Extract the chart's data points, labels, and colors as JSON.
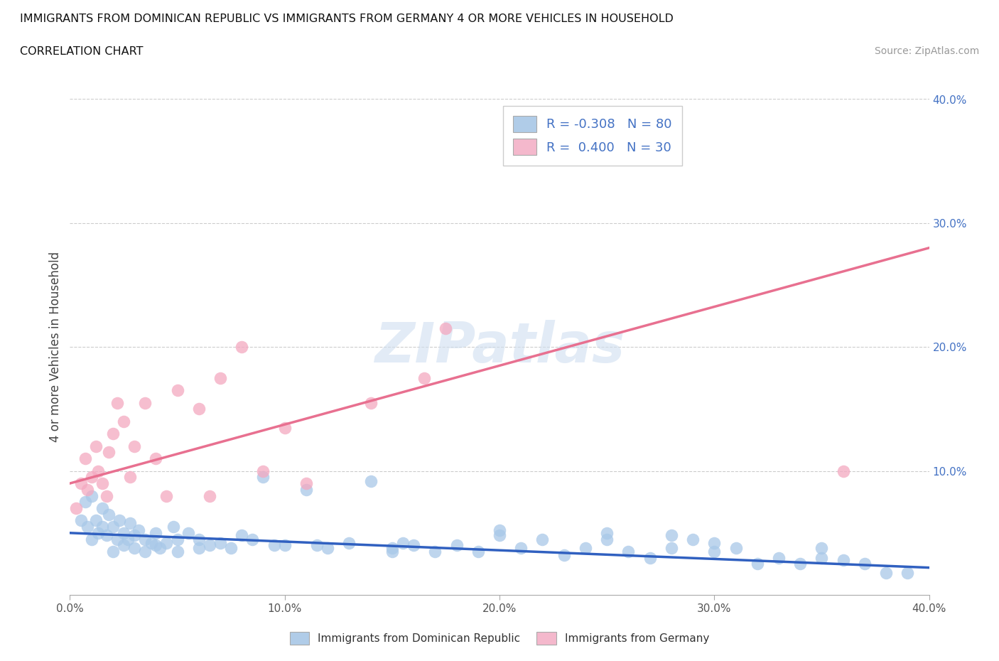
{
  "title_line1": "IMMIGRANTS FROM DOMINICAN REPUBLIC VS IMMIGRANTS FROM GERMANY 4 OR MORE VEHICLES IN HOUSEHOLD",
  "title_line2": "CORRELATION CHART",
  "source": "Source: ZipAtlas.com",
  "ylabel": "4 or more Vehicles in Household",
  "xmin": 0.0,
  "xmax": 0.4,
  "ymin": 0.0,
  "ymax": 0.4,
  "color_blue": "#a8c8e8",
  "color_pink": "#f4a8c0",
  "color_blue_line": "#3060c0",
  "color_pink_line": "#e87090",
  "color_blue_legend": "#b0cce8",
  "color_pink_legend": "#f4b8cc",
  "color_axis_text": "#4472c4",
  "watermark_color": "#d0dff0",
  "blue_line_y_start": 0.05,
  "blue_line_y_end": 0.022,
  "pink_line_y_start": 0.09,
  "pink_line_y_end": 0.28,
  "blue_scatter_x": [
    0.005,
    0.007,
    0.008,
    0.01,
    0.01,
    0.012,
    0.013,
    0.015,
    0.015,
    0.017,
    0.018,
    0.02,
    0.02,
    0.022,
    0.023,
    0.025,
    0.025,
    0.027,
    0.028,
    0.03,
    0.03,
    0.032,
    0.035,
    0.035,
    0.038,
    0.04,
    0.04,
    0.042,
    0.045,
    0.048,
    0.05,
    0.05,
    0.055,
    0.06,
    0.06,
    0.065,
    0.07,
    0.075,
    0.08,
    0.085,
    0.09,
    0.095,
    0.1,
    0.11,
    0.115,
    0.12,
    0.13,
    0.14,
    0.15,
    0.155,
    0.16,
    0.17,
    0.18,
    0.19,
    0.2,
    0.21,
    0.22,
    0.23,
    0.24,
    0.25,
    0.26,
    0.27,
    0.28,
    0.29,
    0.3,
    0.31,
    0.32,
    0.33,
    0.34,
    0.35,
    0.36,
    0.37,
    0.38,
    0.39,
    0.3,
    0.25,
    0.35,
    0.15,
    0.2,
    0.28
  ],
  "blue_scatter_y": [
    0.06,
    0.075,
    0.055,
    0.08,
    0.045,
    0.06,
    0.05,
    0.07,
    0.055,
    0.048,
    0.065,
    0.055,
    0.035,
    0.045,
    0.06,
    0.05,
    0.04,
    0.045,
    0.058,
    0.048,
    0.038,
    0.052,
    0.045,
    0.035,
    0.042,
    0.05,
    0.04,
    0.038,
    0.042,
    0.055,
    0.045,
    0.035,
    0.05,
    0.045,
    0.038,
    0.04,
    0.042,
    0.038,
    0.048,
    0.045,
    0.095,
    0.04,
    0.04,
    0.085,
    0.04,
    0.038,
    0.042,
    0.092,
    0.038,
    0.042,
    0.04,
    0.035,
    0.04,
    0.035,
    0.048,
    0.038,
    0.045,
    0.032,
    0.038,
    0.045,
    0.035,
    0.03,
    0.038,
    0.045,
    0.035,
    0.038,
    0.025,
    0.03,
    0.025,
    0.03,
    0.028,
    0.025,
    0.018,
    0.018,
    0.042,
    0.05,
    0.038,
    0.035,
    0.052,
    0.048
  ],
  "pink_scatter_x": [
    0.003,
    0.005,
    0.007,
    0.008,
    0.01,
    0.012,
    0.013,
    0.015,
    0.017,
    0.018,
    0.02,
    0.022,
    0.025,
    0.028,
    0.03,
    0.035,
    0.04,
    0.045,
    0.05,
    0.06,
    0.065,
    0.07,
    0.08,
    0.09,
    0.1,
    0.11,
    0.14,
    0.165,
    0.175,
    0.36
  ],
  "pink_scatter_y": [
    0.07,
    0.09,
    0.11,
    0.085,
    0.095,
    0.12,
    0.1,
    0.09,
    0.08,
    0.115,
    0.13,
    0.155,
    0.14,
    0.095,
    0.12,
    0.155,
    0.11,
    0.08,
    0.165,
    0.15,
    0.08,
    0.175,
    0.2,
    0.1,
    0.135,
    0.09,
    0.155,
    0.175,
    0.215,
    0.1
  ]
}
